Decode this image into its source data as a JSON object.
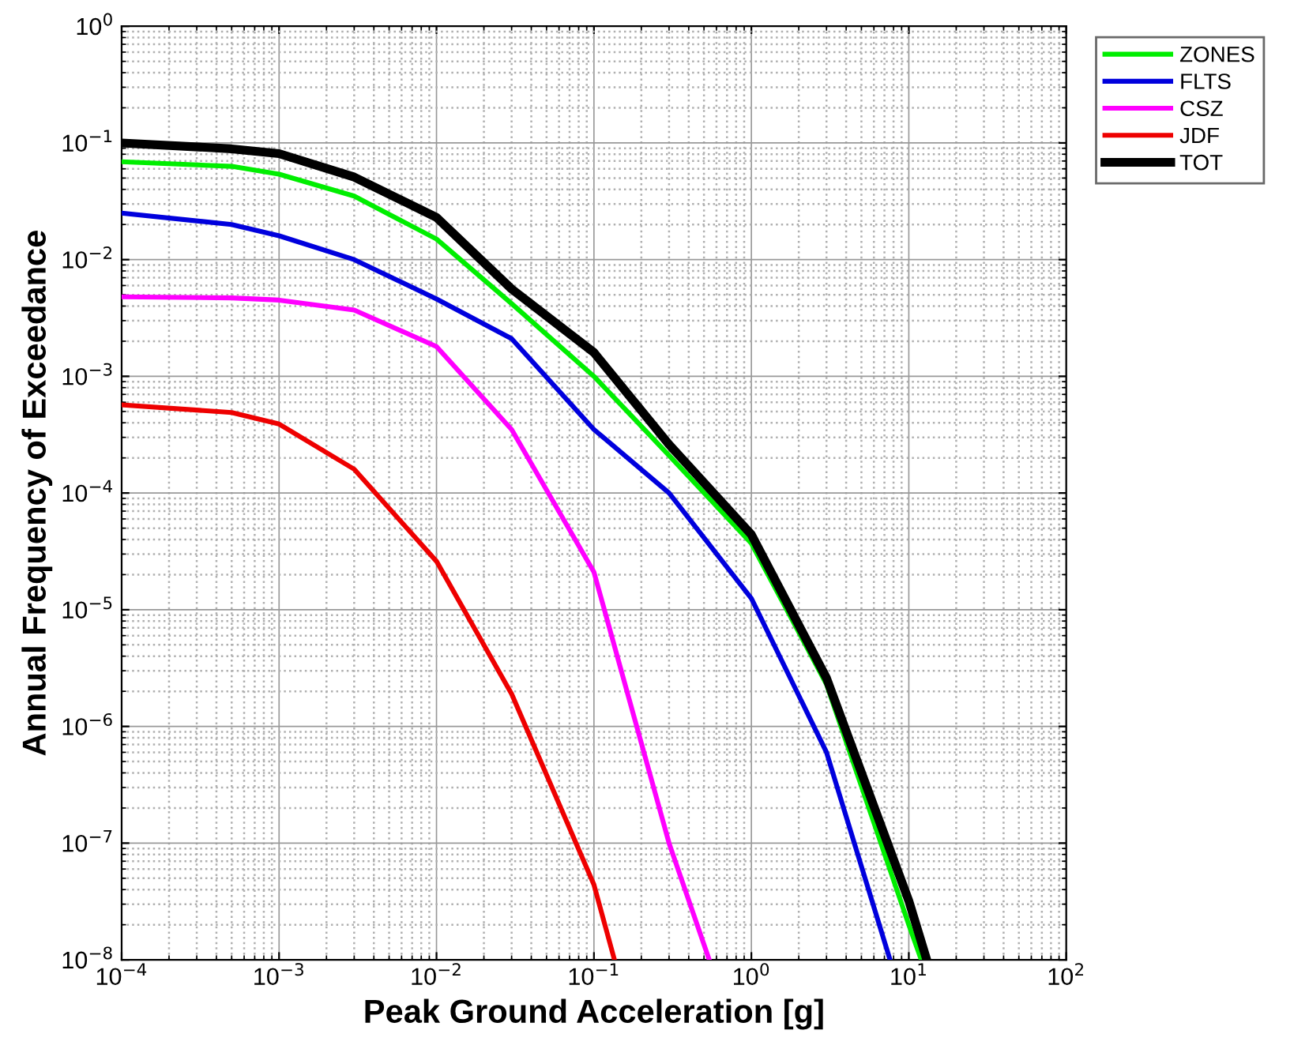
{
  "chart_data": {
    "type": "line",
    "xlabel": "Peak Ground Acceleration [g]",
    "ylabel": "Annual Frequency of Exceedance",
    "log": "xy",
    "grid": true,
    "legend": "top right",
    "xlim": [
      0.0001,
      100
    ],
    "ylim": [
      1e-08,
      1
    ],
    "xticks": [
      {
        "value": 0.0001,
        "label": "10$^{−4}$"
      },
      {
        "value": 0.001,
        "label": "10$^{−3}$"
      },
      {
        "value": 0.01,
        "label": "10$^{−2}$"
      },
      {
        "value": 0.1,
        "label": "10$^{−1}$"
      },
      {
        "value": 1,
        "label": "10$^{0}$"
      },
      {
        "value": 10,
        "label": "10$^{1}$"
      },
      {
        "value": 100,
        "label": "10$^{2}$"
      }
    ],
    "yticks": [
      {
        "value": 1e-08,
        "label": "10$^{−8}$"
      },
      {
        "value": 1e-07,
        "label": "10$^{−7}$"
      },
      {
        "value": 1e-06,
        "label": "10$^{−6}$"
      },
      {
        "value": 1e-05,
        "label": "10$^{−5}$"
      },
      {
        "value": 0.0001,
        "label": "10$^{−4}$"
      },
      {
        "value": 0.001,
        "label": "10$^{−3}$"
      },
      {
        "value": 0.01,
        "label": "10$^{−2}$"
      },
      {
        "value": 0.1,
        "label": "10$^{−1}$"
      },
      {
        "value": 1,
        "label": "10$^{0}$"
      }
    ],
    "series": [
      {
        "name": "ZONES",
        "color": "#00ee00",
        "x": [
          0.0001,
          0.0005,
          0.001,
          0.003,
          0.01,
          0.03,
          0.1,
          0.3,
          1,
          3,
          10,
          12
        ],
        "values": [
          0.069,
          0.063,
          0.054,
          0.035,
          0.015,
          0.0042,
          0.001,
          0.00021,
          3.7e-05,
          2.3e-06,
          2e-08,
          1e-08
        ]
      },
      {
        "name": "FLTS",
        "color": "#0000dd",
        "x": [
          0.0001,
          0.0005,
          0.001,
          0.003,
          0.01,
          0.03,
          0.1,
          0.3,
          1,
          3,
          7.6
        ],
        "values": [
          0.025,
          0.02,
          0.016,
          0.01,
          0.0046,
          0.0021,
          0.00035,
          0.0001,
          1.25e-05,
          6e-07,
          1e-08
        ]
      },
      {
        "name": "CSZ",
        "color": "#ff00ff",
        "x": [
          0.0001,
          0.0005,
          0.001,
          0.003,
          0.01,
          0.03,
          0.1,
          0.3,
          0.54
        ],
        "values": [
          0.0048,
          0.0047,
          0.0045,
          0.0037,
          0.0018,
          0.00035,
          2.1e-05,
          1e-07,
          1e-08
        ]
      },
      {
        "name": "JDF",
        "color": "#ee0000",
        "x": [
          0.0001,
          0.0005,
          0.001,
          0.003,
          0.01,
          0.03,
          0.1,
          0.135
        ],
        "values": [
          0.00057,
          0.00049,
          0.00039,
          0.00016,
          2.6e-05,
          1.9e-06,
          4.4e-08,
          1e-08
        ]
      },
      {
        "name": "TOT",
        "color": "#000000",
        "x": [
          0.0001,
          0.0005,
          0.001,
          0.003,
          0.01,
          0.03,
          0.1,
          0.3,
          1,
          3,
          10,
          13
        ],
        "values": [
          0.1,
          0.089,
          0.081,
          0.051,
          0.023,
          0.0056,
          0.0016,
          0.00026,
          4.4e-05,
          2.6e-06,
          3.2e-08,
          1e-08
        ]
      }
    ]
  }
}
